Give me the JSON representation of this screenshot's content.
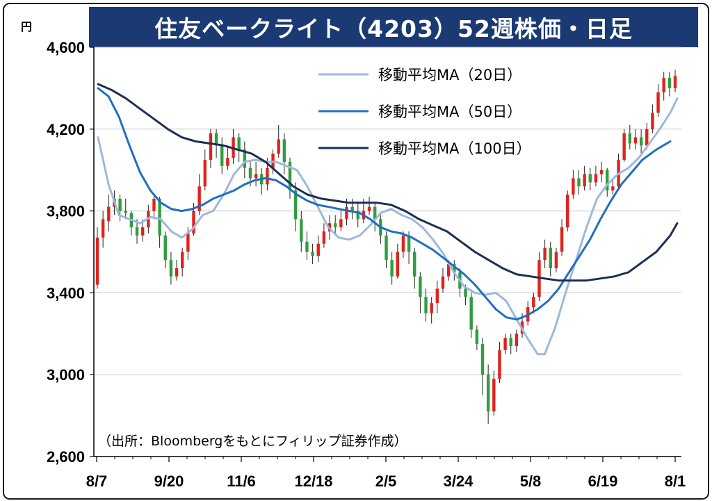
{
  "title": "住友ベークライト（4203）52週株価・日足",
  "unit_label": "円",
  "source_note": "（出所：Bloombergをもとにフィリップ証券作成）",
  "chart_data": {
    "type": "line",
    "title": "住友ベークライト（4203）52週株価・日足",
    "ylabel": "円",
    "ylim": [
      2600,
      4600
    ],
    "y_ticks": [
      {
        "value": 4600,
        "label": "4,600"
      },
      {
        "value": 4200,
        "label": "4,200"
      },
      {
        "value": 3800,
        "label": "3,800"
      },
      {
        "value": 3400,
        "label": "3,400"
      },
      {
        "value": 3000,
        "label": "3,000"
      },
      {
        "value": 2600,
        "label": "2,600"
      }
    ],
    "x_labels": [
      "8/7",
      "9/20",
      "11/6",
      "12/18",
      "2/5",
      "3/24",
      "5/8",
      "6/19",
      "8/1"
    ],
    "grid": true,
    "legend_position": "top-right",
    "series": [
      {
        "name": "移動平均MA（20日）",
        "color": "#9db8dc",
        "points": [
          [
            0,
            4160
          ],
          [
            3,
            3930
          ],
          [
            6,
            3780
          ],
          [
            9,
            3760
          ],
          [
            12,
            3740
          ],
          [
            15,
            3770
          ],
          [
            18,
            3760
          ],
          [
            21,
            3700
          ],
          [
            24,
            3670
          ],
          [
            27,
            3710
          ],
          [
            30,
            3780
          ],
          [
            33,
            3800
          ],
          [
            36,
            3880
          ],
          [
            39,
            3980
          ],
          [
            42,
            4040
          ],
          [
            45,
            4050
          ],
          [
            48,
            4040
          ],
          [
            51,
            4040
          ],
          [
            54,
            4020
          ],
          [
            57,
            4000
          ],
          [
            60,
            3920
          ],
          [
            63,
            3820
          ],
          [
            66,
            3720
          ],
          [
            69,
            3670
          ],
          [
            72,
            3660
          ],
          [
            75,
            3680
          ],
          [
            78,
            3730
          ],
          [
            81,
            3790
          ],
          [
            84,
            3810
          ],
          [
            87,
            3780
          ],
          [
            90,
            3760
          ],
          [
            93,
            3720
          ],
          [
            96,
            3660
          ],
          [
            99,
            3590
          ],
          [
            102,
            3500
          ],
          [
            105,
            3430
          ],
          [
            108,
            3400
          ],
          [
            111,
            3390
          ],
          [
            114,
            3400
          ],
          [
            117,
            3360
          ],
          [
            120,
            3270
          ],
          [
            123,
            3180
          ],
          [
            126,
            3100
          ],
          [
            128,
            3100
          ],
          [
            131,
            3230
          ],
          [
            134,
            3400
          ],
          [
            137,
            3560
          ],
          [
            140,
            3720
          ],
          [
            143,
            3860
          ],
          [
            146,
            3930
          ],
          [
            149,
            3980
          ],
          [
            152,
            4010
          ],
          [
            155,
            4060
          ],
          [
            158,
            4130
          ],
          [
            161,
            4200
          ],
          [
            164,
            4280
          ],
          [
            166,
            4350
          ]
        ]
      },
      {
        "name": "移動平均MA（50日）",
        "color": "#1f6fc1",
        "points": [
          [
            0,
            4400
          ],
          [
            3,
            4360
          ],
          [
            6,
            4260
          ],
          [
            9,
            4120
          ],
          [
            12,
            3990
          ],
          [
            15,
            3900
          ],
          [
            18,
            3840
          ],
          [
            21,
            3810
          ],
          [
            24,
            3800
          ],
          [
            27,
            3810
          ],
          [
            30,
            3830
          ],
          [
            33,
            3860
          ],
          [
            36,
            3880
          ],
          [
            39,
            3900
          ],
          [
            42,
            3930
          ],
          [
            45,
            3950
          ],
          [
            48,
            3960
          ],
          [
            51,
            3950
          ],
          [
            54,
            3920
          ],
          [
            57,
            3880
          ],
          [
            60,
            3850
          ],
          [
            63,
            3830
          ],
          [
            66,
            3820
          ],
          [
            69,
            3810
          ],
          [
            72,
            3800
          ],
          [
            75,
            3790
          ],
          [
            78,
            3760
          ],
          [
            81,
            3720
          ],
          [
            84,
            3700
          ],
          [
            87,
            3690
          ],
          [
            90,
            3670
          ],
          [
            93,
            3640
          ],
          [
            96,
            3610
          ],
          [
            99,
            3570
          ],
          [
            102,
            3530
          ],
          [
            105,
            3490
          ],
          [
            108,
            3440
          ],
          [
            111,
            3380
          ],
          [
            114,
            3320
          ],
          [
            117,
            3280
          ],
          [
            120,
            3270
          ],
          [
            123,
            3290
          ],
          [
            126,
            3320
          ],
          [
            129,
            3360
          ],
          [
            132,
            3420
          ],
          [
            135,
            3500
          ],
          [
            138,
            3580
          ],
          [
            141,
            3660
          ],
          [
            144,
            3760
          ],
          [
            147,
            3850
          ],
          [
            150,
            3930
          ],
          [
            153,
            3990
          ],
          [
            156,
            4050
          ],
          [
            160,
            4100
          ],
          [
            164,
            4140
          ]
        ]
      },
      {
        "name": "移動平均MA（100日）",
        "color": "#1c2f52",
        "points": [
          [
            0,
            4420
          ],
          [
            4,
            4390
          ],
          [
            8,
            4350
          ],
          [
            12,
            4300
          ],
          [
            16,
            4250
          ],
          [
            20,
            4200
          ],
          [
            24,
            4160
          ],
          [
            28,
            4140
          ],
          [
            32,
            4130
          ],
          [
            36,
            4120
          ],
          [
            40,
            4100
          ],
          [
            44,
            4080
          ],
          [
            48,
            4040
          ],
          [
            52,
            3980
          ],
          [
            56,
            3920
          ],
          [
            60,
            3880
          ],
          [
            64,
            3860
          ],
          [
            68,
            3850
          ],
          [
            72,
            3840
          ],
          [
            76,
            3840
          ],
          [
            80,
            3840
          ],
          [
            84,
            3830
          ],
          [
            88,
            3800
          ],
          [
            92,
            3760
          ],
          [
            96,
            3730
          ],
          [
            100,
            3700
          ],
          [
            104,
            3650
          ],
          [
            108,
            3600
          ],
          [
            112,
            3560
          ],
          [
            116,
            3520
          ],
          [
            120,
            3490
          ],
          [
            124,
            3480
          ],
          [
            128,
            3470
          ],
          [
            132,
            3460
          ],
          [
            136,
            3460
          ],
          [
            140,
            3460
          ],
          [
            144,
            3470
          ],
          [
            148,
            3480
          ],
          [
            152,
            3500
          ],
          [
            156,
            3550
          ],
          [
            160,
            3600
          ],
          [
            164,
            3680
          ],
          [
            166,
            3740
          ]
        ]
      }
    ],
    "candles": [
      [
        3440,
        3670,
        3720,
        3420
      ],
      [
        3670,
        3760,
        3800,
        3620
      ],
      [
        3750,
        3820,
        3880,
        3700
      ],
      [
        3820,
        3860,
        3900,
        3780
      ],
      [
        3860,
        3800,
        3880,
        3750
      ],
      [
        3800,
        3790,
        3860,
        3760
      ],
      [
        3790,
        3720,
        3800,
        3680
      ],
      [
        3720,
        3680,
        3760,
        3640
      ],
      [
        3680,
        3720,
        3760,
        3650
      ],
      [
        3720,
        3800,
        3830,
        3690
      ],
      [
        3800,
        3860,
        3880,
        3760
      ],
      [
        3860,
        3680,
        3870,
        3620
      ],
      [
        3680,
        3560,
        3700,
        3520
      ],
      [
        3560,
        3480,
        3600,
        3440
      ],
      [
        3480,
        3520,
        3560,
        3460
      ],
      [
        3520,
        3600,
        3620,
        3480
      ],
      [
        3600,
        3690,
        3720,
        3560
      ],
      [
        3690,
        3800,
        3840,
        3680
      ],
      [
        3800,
        3920,
        3980,
        3780
      ],
      [
        3920,
        4050,
        4100,
        3900
      ],
      [
        4050,
        4180,
        4200,
        4010
      ],
      [
        4180,
        4120,
        4200,
        4060
      ],
      [
        4120,
        4020,
        4160,
        3980
      ],
      [
        4020,
        4060,
        4120,
        4000
      ],
      [
        4060,
        4160,
        4200,
        4030
      ],
      [
        4160,
        4100,
        4180,
        4040
      ],
      [
        4100,
        4010,
        4140,
        3960
      ],
      [
        4010,
        3960,
        4050,
        3920
      ],
      [
        3960,
        3980,
        4040,
        3920
      ],
      [
        3980,
        3930,
        4010,
        3880
      ],
      [
        3930,
        4010,
        4060,
        3900
      ],
      [
        4010,
        4080,
        4100,
        3980
      ],
      [
        4080,
        4150,
        4220,
        4060
      ],
      [
        4150,
        4040,
        4180,
        3980
      ],
      [
        4040,
        3900,
        4060,
        3860
      ],
      [
        3900,
        3760,
        3940,
        3700
      ],
      [
        3760,
        3650,
        3800,
        3600
      ],
      [
        3650,
        3600,
        3700,
        3560
      ],
      [
        3600,
        3580,
        3640,
        3540
      ],
      [
        3580,
        3640,
        3680,
        3550
      ],
      [
        3640,
        3700,
        3740,
        3620
      ],
      [
        3700,
        3740,
        3780,
        3660
      ],
      [
        3740,
        3720,
        3780,
        3680
      ],
      [
        3720,
        3760,
        3800,
        3700
      ],
      [
        3760,
        3820,
        3860,
        3730
      ],
      [
        3820,
        3800,
        3860,
        3760
      ],
      [
        3800,
        3760,
        3840,
        3720
      ],
      [
        3760,
        3800,
        3860,
        3740
      ],
      [
        3800,
        3820,
        3870,
        3780
      ],
      [
        3820,
        3760,
        3840,
        3700
      ],
      [
        3760,
        3680,
        3780,
        3640
      ],
      [
        3680,
        3560,
        3700,
        3520
      ],
      [
        3560,
        3480,
        3600,
        3440
      ],
      [
        3480,
        3600,
        3640,
        3470
      ],
      [
        3600,
        3680,
        3700,
        3570
      ],
      [
        3680,
        3600,
        3700,
        3540
      ],
      [
        3600,
        3480,
        3620,
        3420
      ],
      [
        3480,
        3380,
        3500,
        3300
      ],
      [
        3380,
        3300,
        3420,
        3260
      ],
      [
        3300,
        3350,
        3380,
        3250
      ],
      [
        3350,
        3420,
        3460,
        3300
      ],
      [
        3420,
        3480,
        3520,
        3400
      ],
      [
        3480,
        3540,
        3560,
        3460
      ],
      [
        3540,
        3500,
        3560,
        3460
      ],
      [
        3500,
        3420,
        3520,
        3380
      ],
      [
        3420,
        3380,
        3440,
        3340
      ],
      [
        3380,
        3220,
        3400,
        3180
      ],
      [
        3220,
        3150,
        3240,
        3120
      ],
      [
        3150,
        3000,
        3180,
        2900
      ],
      [
        3000,
        2820,
        3050,
        2760
      ],
      [
        2820,
        2980,
        3020,
        2800
      ],
      [
        2980,
        3120,
        3160,
        2960
      ],
      [
        3120,
        3180,
        3200,
        3100
      ],
      [
        3180,
        3140,
        3200,
        3100
      ],
      [
        3140,
        3200,
        3220,
        3110
      ],
      [
        3200,
        3260,
        3300,
        3180
      ],
      [
        3260,
        3330,
        3360,
        3240
      ],
      [
        3330,
        3380,
        3400,
        3300
      ],
      [
        3380,
        3560,
        3600,
        3360
      ],
      [
        3560,
        3620,
        3660,
        3520
      ],
      [
        3620,
        3520,
        3650,
        3480
      ],
      [
        3520,
        3600,
        3620,
        3500
      ],
      [
        3600,
        3720,
        3760,
        3580
      ],
      [
        3720,
        3880,
        3900,
        3700
      ],
      [
        3880,
        3960,
        4000,
        3860
      ],
      [
        3960,
        3920,
        4000,
        3880
      ],
      [
        3920,
        3980,
        4020,
        3900
      ],
      [
        3980,
        3940,
        4010,
        3900
      ],
      [
        3940,
        3980,
        4020,
        3920
      ],
      [
        3980,
        4000,
        4040,
        3940
      ],
      [
        4000,
        3900,
        4010,
        3870
      ],
      [
        3900,
        3920,
        3960,
        3880
      ],
      [
        3920,
        4050,
        4080,
        3900
      ],
      [
        4050,
        4180,
        4200,
        4040
      ],
      [
        4180,
        4130,
        4220,
        4100
      ],
      [
        4130,
        4160,
        4200,
        4100
      ],
      [
        4160,
        4120,
        4200,
        4080
      ],
      [
        4120,
        4200,
        4230,
        4100
      ],
      [
        4200,
        4280,
        4320,
        4180
      ],
      [
        4280,
        4380,
        4420,
        4260
      ],
      [
        4380,
        4450,
        4480,
        4340
      ],
      [
        4450,
        4400,
        4480,
        4360
      ],
      [
        4400,
        4460,
        4490,
        4380
      ]
    ]
  }
}
